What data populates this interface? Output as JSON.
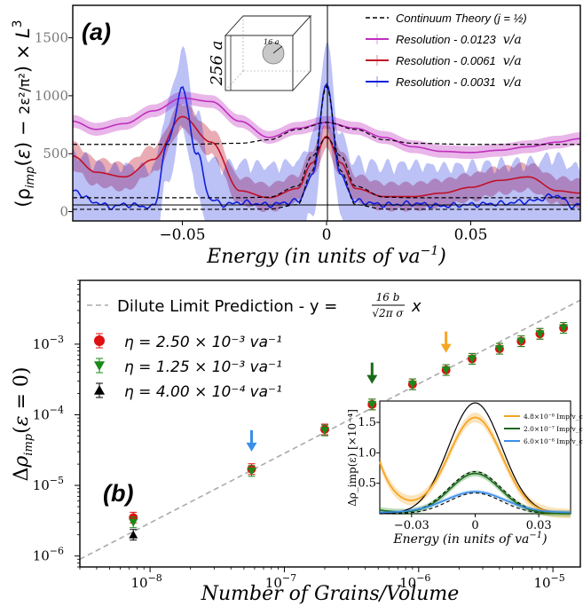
{
  "chart_data": [
    {
      "type": "line",
      "panel_label": "(a)",
      "xlabel": "Energy (in units of va",
      "xlabel_sup": "−1",
      "xlabel_close": ")",
      "ylabel": "(ρ_imp(ε) − 2ε²/π²) × L³",
      "xlim": [
        -0.088,
        0.088
      ],
      "ylim": [
        -80,
        1780
      ],
      "x_ticks": [
        -0.05,
        0,
        0.05
      ],
      "x_tick_labels": [
        "−0.05",
        "0",
        "0.05"
      ],
      "y_ticks": [
        0,
        500,
        1000,
        1500
      ],
      "y_tick_labels": [
        "0",
        "500",
        "1000",
        "1500"
      ],
      "colors": {
        "purple": "#bf2fbf",
        "red": "#c01028",
        "blue": "#1020dd",
        "theory": "#000000"
      },
      "legend": [
        {
          "label": "Continuum Theory (j = ½)",
          "style": "dashed",
          "color": "#000000"
        },
        {
          "label": "Resolution - 0.0123",
          "unit": "v/a",
          "color": "#bf2fbf"
        },
        {
          "label": "Resolution - 0.0061",
          "unit": "v/a",
          "color": "#c01028"
        },
        {
          "label": "Resolution - 0.0031",
          "unit": "v/a",
          "color": "#1020dd"
        }
      ],
      "inset_cube": {
        "side_label": "256 a",
        "sphere_label": "16 a"
      },
      "series": [
        {
          "name": "Resolution - 0.0123 v/a",
          "x": [
            -0.088,
            -0.08,
            -0.07,
            -0.06,
            -0.05,
            -0.04,
            -0.03,
            -0.02,
            -0.01,
            0,
            0.01,
            0.02,
            0.03,
            0.04,
            0.05,
            0.06,
            0.07,
            0.08,
            0.088
          ],
          "y": [
            780,
            710,
            760,
            870,
            980,
            950,
            780,
            640,
            720,
            770,
            720,
            640,
            560,
            520,
            510,
            530,
            560,
            600,
            630
          ]
        },
        {
          "name": "Resolution - 0.0061 v/a",
          "x": [
            -0.088,
            -0.08,
            -0.07,
            -0.06,
            -0.05,
            -0.04,
            -0.03,
            -0.02,
            -0.01,
            -0.005,
            0,
            0.005,
            0.01,
            0.02,
            0.03,
            0.04,
            0.05,
            0.06,
            0.07,
            0.08,
            0.088
          ],
          "y": [
            480,
            340,
            300,
            450,
            820,
            600,
            180,
            120,
            200,
            420,
            650,
            420,
            200,
            130,
            130,
            160,
            210,
            270,
            300,
            180,
            160
          ]
        },
        {
          "name": "Resolution - 0.0031 v/a",
          "x": [
            -0.088,
            -0.08,
            -0.075,
            -0.07,
            -0.06,
            -0.055,
            -0.05,
            -0.045,
            -0.04,
            -0.035,
            -0.03,
            -0.02,
            -0.01,
            -0.005,
            0,
            0.005,
            0.01,
            0.02,
            0.03,
            0.04,
            0.05,
            0.06,
            0.07,
            0.08,
            0.085,
            0.088
          ],
          "y": [
            180,
            80,
            40,
            60,
            40,
            600,
            1060,
            500,
            100,
            60,
            80,
            60,
            90,
            300,
            1100,
            300,
            90,
            60,
            70,
            50,
            60,
            70,
            90,
            140,
            50,
            60
          ]
        },
        {
          "name": "Continuum Theory (j = ½)",
          "x": [
            -0.088,
            -0.06,
            -0.04,
            -0.02,
            -0.01,
            -0.005,
            0,
            0.005,
            0.01,
            0.02,
            0.04,
            0.06,
            0.088
          ],
          "y": [
            20,
            20,
            20,
            22,
            60,
            350,
            1080,
            350,
            60,
            22,
            20,
            20,
            20
          ]
        },
        {
          "name": "Continuum Theory broad",
          "x": [
            -0.088,
            -0.05,
            -0.03,
            -0.02,
            -0.01,
            0,
            0.01,
            0.02,
            0.03,
            0.05,
            0.088
          ],
          "y": [
            580,
            580,
            590,
            620,
            710,
            770,
            710,
            620,
            590,
            580,
            580
          ]
        },
        {
          "name": "Continuum Theory medium",
          "x": [
            -0.088,
            -0.03,
            -0.02,
            -0.01,
            -0.005,
            0,
            0.005,
            0.01,
            0.02,
            0.03,
            0.088
          ],
          "y": [
            120,
            120,
            125,
            220,
            480,
            640,
            480,
            220,
            125,
            120,
            120
          ]
        }
      ]
    },
    {
      "type": "scatter",
      "panel_label": "(b)",
      "xlabel": "Number of Grains/Volume",
      "ylabel": "Δρ_imp(ε = 0)",
      "xscale": "log",
      "yscale": "log",
      "xlim": [
        3e-09,
        1.6e-05
      ],
      "ylim": [
        7e-07,
        0.008
      ],
      "x_tick_labels": [
        {
          "mant": "10",
          "exp": "−8",
          "val": 1e-08
        },
        {
          "mant": "10",
          "exp": "−7",
          "val": 1e-07
        },
        {
          "mant": "10",
          "exp": "−6",
          "val": 1e-06
        },
        {
          "mant": "10",
          "exp": "−5",
          "val": 1e-05
        }
      ],
      "y_tick_labels": [
        {
          "mant": "10",
          "exp": "−6",
          "val": 1e-06
        },
        {
          "mant": "10",
          "exp": "−5",
          "val": 1e-05
        },
        {
          "mant": "10",
          "exp": "−4",
          "val": 0.0001
        },
        {
          "mant": "10",
          "exp": "−3",
          "val": 0.001
        }
      ],
      "legend": {
        "dilute": "Dilute Limit Prediction - y = ",
        "dilute_num": "16 b",
        "dilute_den": "√2π σ",
        "dilute_x": "x",
        "eta": [
          {
            "label": "η = 2.50 × 10⁻³ va⁻¹",
            "color": "#e01010",
            "marker": "circle"
          },
          {
            "label": "η = 1.25 × 10⁻³ va⁻¹",
            "color": "#1a8a1a",
            "marker": "triangle-down"
          },
          {
            "label": "η = 4.00 × 10⁻⁴ va⁻¹",
            "color": "#000000",
            "marker": "triangle-up"
          }
        ]
      },
      "dilute_line": {
        "x": [
          3e-09,
          1.6e-05
        ],
        "y": [
          9e-07,
          0.0042
        ]
      },
      "series": [
        {
          "name": "η = 2.50 × 10⁻³ va⁻¹",
          "x": [
            7.5e-09,
            5.7e-08,
            2e-07,
            4.5e-07,
            9e-07,
            1.6e-06,
            2.5e-06,
            4e-06,
            5.8e-06,
            8e-06,
            1.2e-05
          ],
          "y": [
            3.5e-06,
            1.7e-05,
            6.2e-05,
            0.00014,
            0.00027,
            0.00043,
            0.00062,
            0.00086,
            0.0011,
            0.0014,
            0.0017
          ]
        },
        {
          "name": "η = 1.25 × 10⁻³ va⁻¹",
          "x": [
            7.5e-09,
            5.7e-08,
            2e-07,
            4.5e-07,
            9e-07,
            1.6e-06,
            2.5e-06,
            4e-06,
            5.8e-06,
            8e-06,
            1.2e-05
          ],
          "y": [
            3e-06,
            1.6e-05,
            6e-05,
            0.00014,
            0.00027,
            0.00043,
            0.00062,
            0.00086,
            0.0011,
            0.0014,
            0.0017
          ]
        },
        {
          "name": "η = 4.00 × 10⁻⁴ va⁻¹",
          "x": [
            7.5e-09
          ],
          "y": [
            2e-06
          ]
        }
      ],
      "arrows": [
        {
          "x": 5.7e-08,
          "y": 3.2e-05,
          "color": "#3a8ee8"
        },
        {
          "x": 4.5e-07,
          "y": 0.00029,
          "color": "#1a6a1a"
        },
        {
          "x": 1.6e-06,
          "y": 0.0008,
          "color": "#f5a623"
        }
      ],
      "inset": {
        "xlabel": "Energy (in units of va",
        "xlabel_sup": "−1",
        "xlabel_close": ")",
        "ylabel": "Δρ_imp(ε) [×10⁻⁴]",
        "x_tick_labels": [
          "−0.03",
          "0",
          "0.03"
        ],
        "y_tick_labels": [
          "0.5",
          "1.0",
          "1.5"
        ],
        "legend": [
          {
            "label": "4.8×10⁻⁸ Imp/v_c",
            "color": "#f5a623"
          },
          {
            "label": "2.0×10⁻⁷ Imp/v_c",
            "color": "#1a6a1a"
          },
          {
            "label": "6.0×10⁻⁸ Imp/v_c",
            "color": "#3a8ee8"
          }
        ]
      }
    }
  ]
}
